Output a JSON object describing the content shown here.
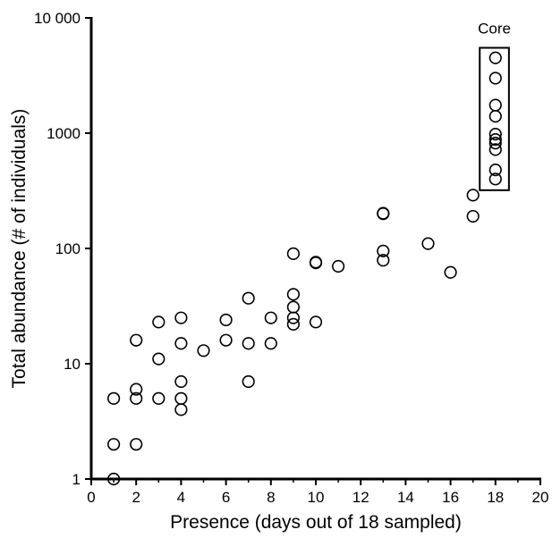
{
  "chart_data": {
    "type": "scatter",
    "title": "",
    "xlabel": "Presence (days out of 18 sampled)",
    "ylabel": "Total abundance (# of individuals)",
    "xlim": [
      0,
      20
    ],
    "ylim": [
      1,
      10000
    ],
    "y_scale": "log",
    "grid": false,
    "x_ticks": [
      0,
      2,
      4,
      6,
      8,
      10,
      12,
      14,
      16,
      18,
      20
    ],
    "x_tick_labels": [
      "0",
      "2",
      "4",
      "6",
      "8",
      "10",
      "12",
      "14",
      "16",
      "18",
      "20"
    ],
    "y_ticks": [
      1,
      10,
      100,
      1000,
      10000
    ],
    "y_tick_labels": [
      "1",
      "10",
      "100",
      "1000",
      "10 000"
    ],
    "annotation": {
      "label": "Core",
      "x_range": [
        17.3,
        18.6
      ],
      "y_range": [
        320,
        5500
      ]
    },
    "points": [
      [
        1,
        1
      ],
      [
        1,
        2
      ],
      [
        1,
        5
      ],
      [
        2,
        2
      ],
      [
        2,
        5
      ],
      [
        2,
        6
      ],
      [
        2,
        16
      ],
      [
        3,
        5
      ],
      [
        3,
        11
      ],
      [
        3,
        23
      ],
      [
        4,
        4
      ],
      [
        4,
        5
      ],
      [
        4,
        7
      ],
      [
        4,
        15
      ],
      [
        4,
        25
      ],
      [
        5,
        13
      ],
      [
        6,
        16
      ],
      [
        6,
        24
      ],
      [
        7,
        7
      ],
      [
        7,
        15
      ],
      [
        7,
        37
      ],
      [
        8,
        15
      ],
      [
        8,
        25
      ],
      [
        9,
        22
      ],
      [
        9,
        25
      ],
      [
        9,
        31
      ],
      [
        9,
        40
      ],
      [
        9,
        90
      ],
      [
        10,
        23
      ],
      [
        10,
        75
      ],
      [
        10,
        76
      ],
      [
        11,
        70
      ],
      [
        13,
        79
      ],
      [
        13,
        95
      ],
      [
        13,
        200
      ],
      [
        13,
        202
      ],
      [
        15,
        110
      ],
      [
        16,
        62
      ],
      [
        17,
        190
      ],
      [
        17,
        290
      ],
      [
        18,
        400
      ],
      [
        18,
        480
      ],
      [
        18,
        720
      ],
      [
        18,
        820
      ],
      [
        18,
        880
      ],
      [
        18,
        980
      ],
      [
        18,
        1400
      ],
      [
        18,
        1750
      ],
      [
        18,
        3000
      ],
      [
        18,
        4500
      ]
    ]
  }
}
